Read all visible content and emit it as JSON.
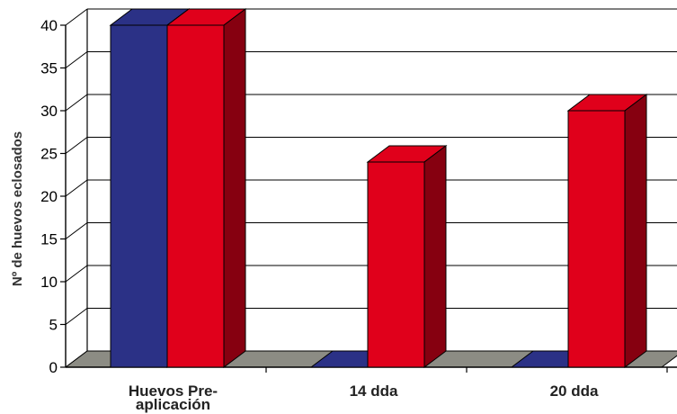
{
  "chart_data": {
    "type": "bar",
    "style": "3d-clustered",
    "categories": [
      "Huevos Pre-\naplicación",
      "14 dda",
      "20 dda"
    ],
    "series": [
      {
        "values": [
          40,
          0,
          0
        ],
        "color": "#2b3186"
      },
      {
        "values": [
          40,
          24,
          30
        ],
        "color": "#e0001b"
      }
    ],
    "xlabel": "",
    "ylabel": "Nº de huevos eclosados",
    "ylim": [
      0,
      40
    ],
    "yticks": [
      0,
      5,
      10,
      15,
      20,
      25,
      30,
      35,
      40
    ],
    "grid": true,
    "legend": "none"
  }
}
